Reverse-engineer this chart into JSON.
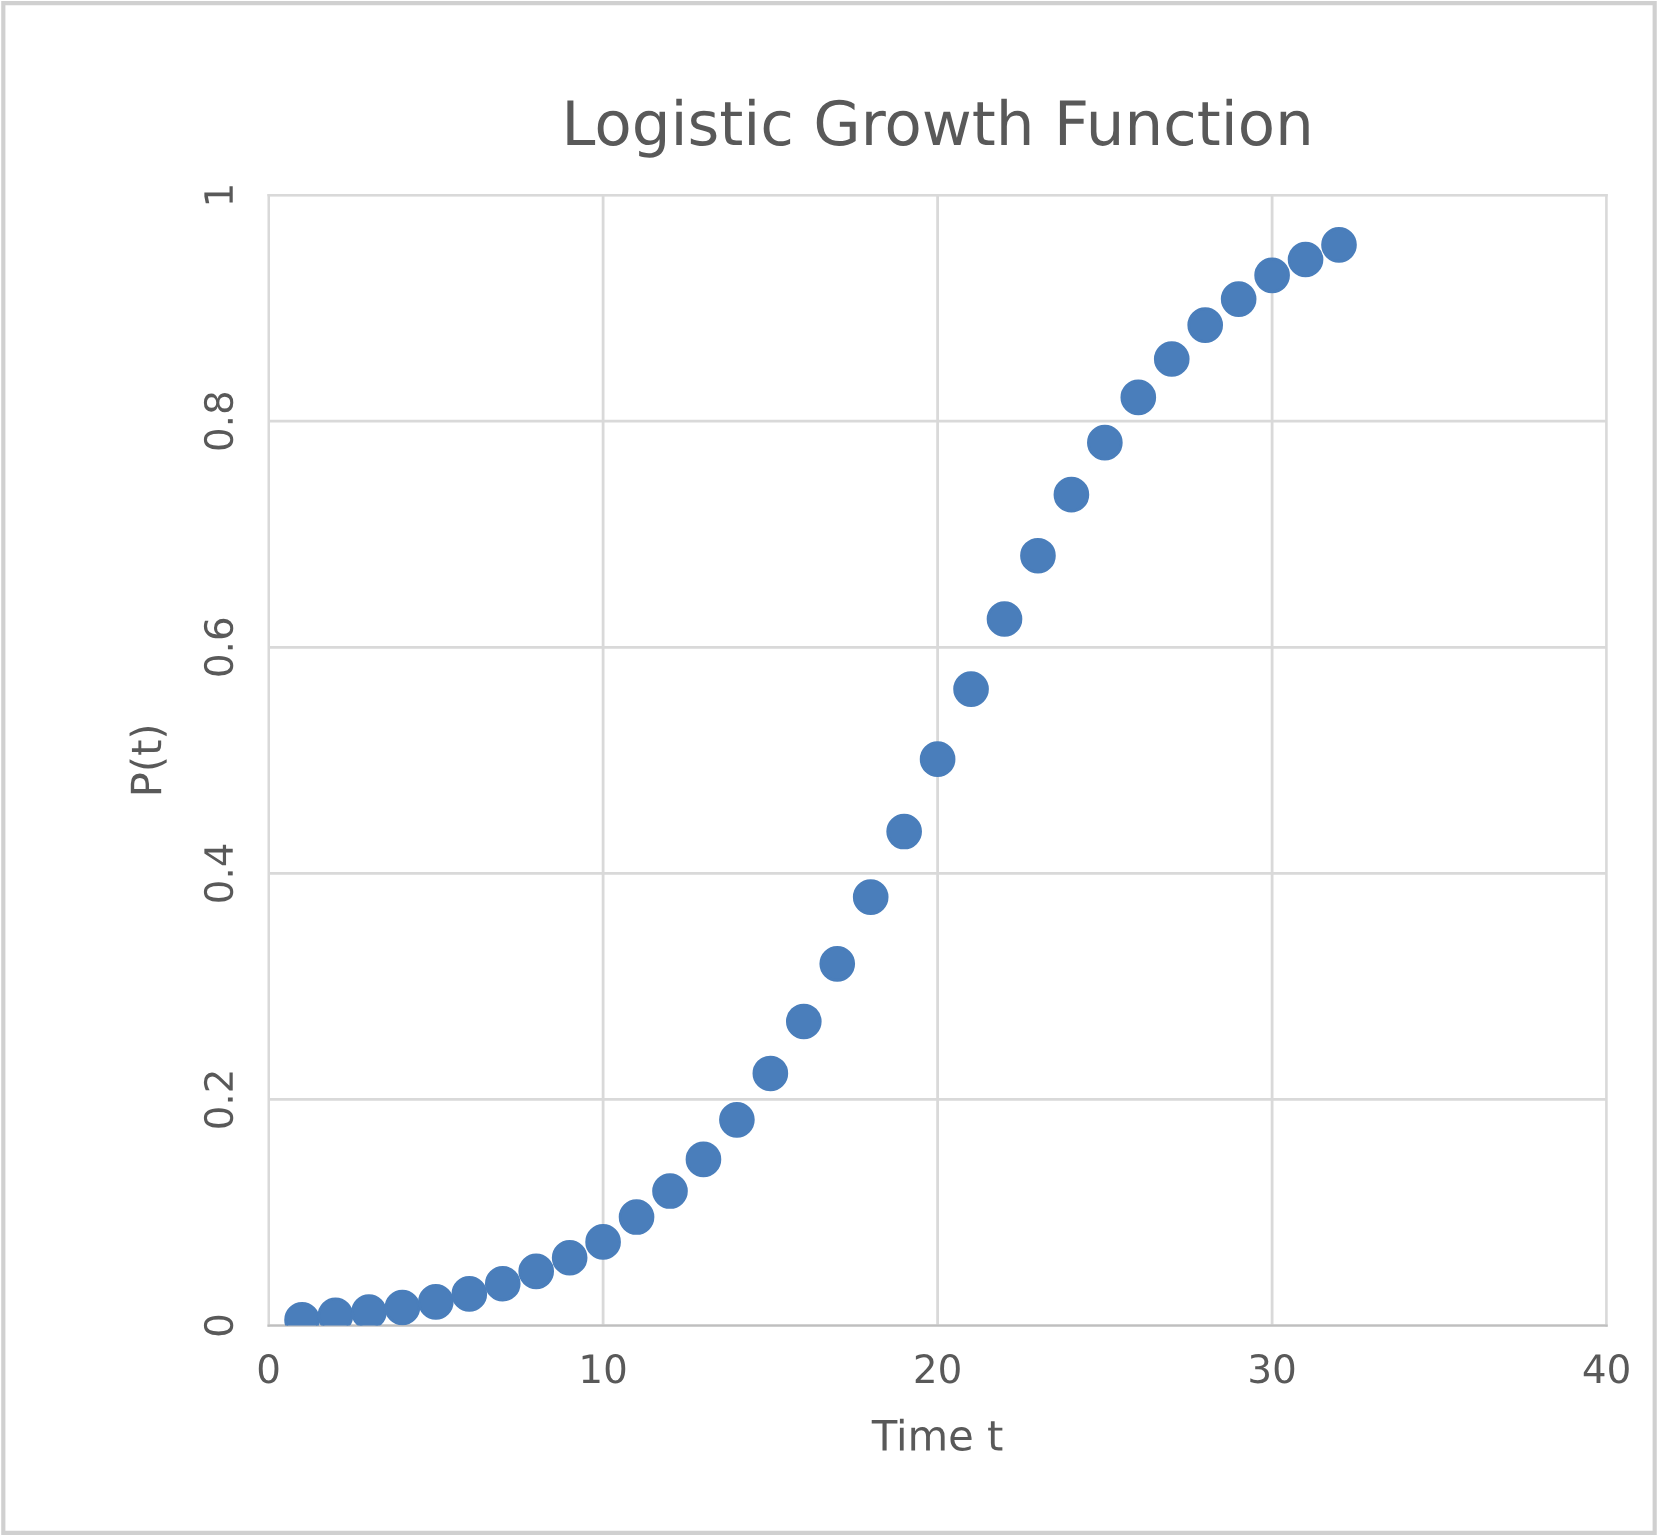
{
  "chart_data": {
    "type": "scatter",
    "title": "Logistic Growth Function",
    "xlabel": "Time t",
    "ylabel": "P(t)",
    "x": [
      1,
      2,
      3,
      4,
      5,
      6,
      7,
      8,
      9,
      10,
      11,
      12,
      13,
      14,
      15,
      16,
      17,
      18,
      19,
      20,
      21,
      22,
      23,
      24,
      25,
      26,
      27,
      28,
      29,
      30,
      31,
      32
    ],
    "series": [
      {
        "color": "#4a7ebb",
        "values": [
          0.005,
          0.009,
          0.012,
          0.016,
          0.021,
          0.028,
          0.037,
          0.048,
          0.06,
          0.074,
          0.096,
          0.119,
          0.147,
          0.182,
          0.223,
          0.269,
          0.32,
          0.379,
          0.437,
          0.501,
          0.563,
          0.625,
          0.681,
          0.735,
          0.781,
          0.821,
          0.855,
          0.885,
          0.908,
          0.929,
          0.943,
          0.956
        ]
      }
    ],
    "xlim": [
      0,
      40
    ],
    "ylim": [
      0,
      1
    ],
    "xticks": [
      0,
      10,
      20,
      30,
      40
    ],
    "yticks": [
      0,
      0.2,
      0.4,
      0.6,
      0.8,
      1
    ],
    "grid": true,
    "marker": "circle",
    "legend": false
  }
}
